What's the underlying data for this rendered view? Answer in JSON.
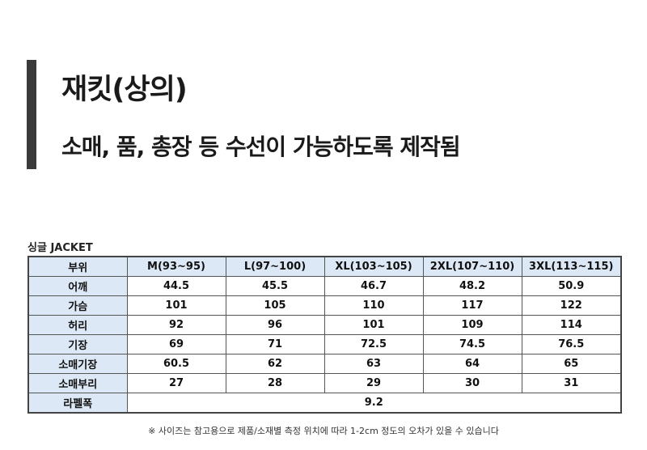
{
  "header": {
    "title": "재킷(상의)",
    "subtitle": "소매, 품, 총장 등 수선이 가능하도록 제작됨"
  },
  "table": {
    "label": "싱글 JACKET",
    "columns": [
      "부위",
      "M(93~95)",
      "L(97~100)",
      "XL(103~105)",
      "2XL(107~110)",
      "3XL(113~115)"
    ],
    "rows": [
      {
        "label": "어깨",
        "values": [
          "44.5",
          "45.5",
          "46.7",
          "48.2",
          "50.9"
        ]
      },
      {
        "label": "가슴",
        "values": [
          "101",
          "105",
          "110",
          "117",
          "122"
        ]
      },
      {
        "label": "허리",
        "values": [
          "92",
          "96",
          "101",
          "109",
          "114"
        ]
      },
      {
        "label": "기장",
        "values": [
          "69",
          "71",
          "72.5",
          "74.5",
          "76.5"
        ]
      },
      {
        "label": "소매기장",
        "values": [
          "60.5",
          "62",
          "63",
          "64",
          "65"
        ]
      },
      {
        "label": "소매부리",
        "values": [
          "27",
          "28",
          "29",
          "30",
          "31"
        ]
      }
    ],
    "lapel": {
      "label": "라펠폭",
      "value": "9.2"
    }
  },
  "footnote": "※ 사이즈는 참고용으로 제품/소재별 측정 위치에 따라 1-2cm 정도의 오차가 있을 수 있습니다"
}
